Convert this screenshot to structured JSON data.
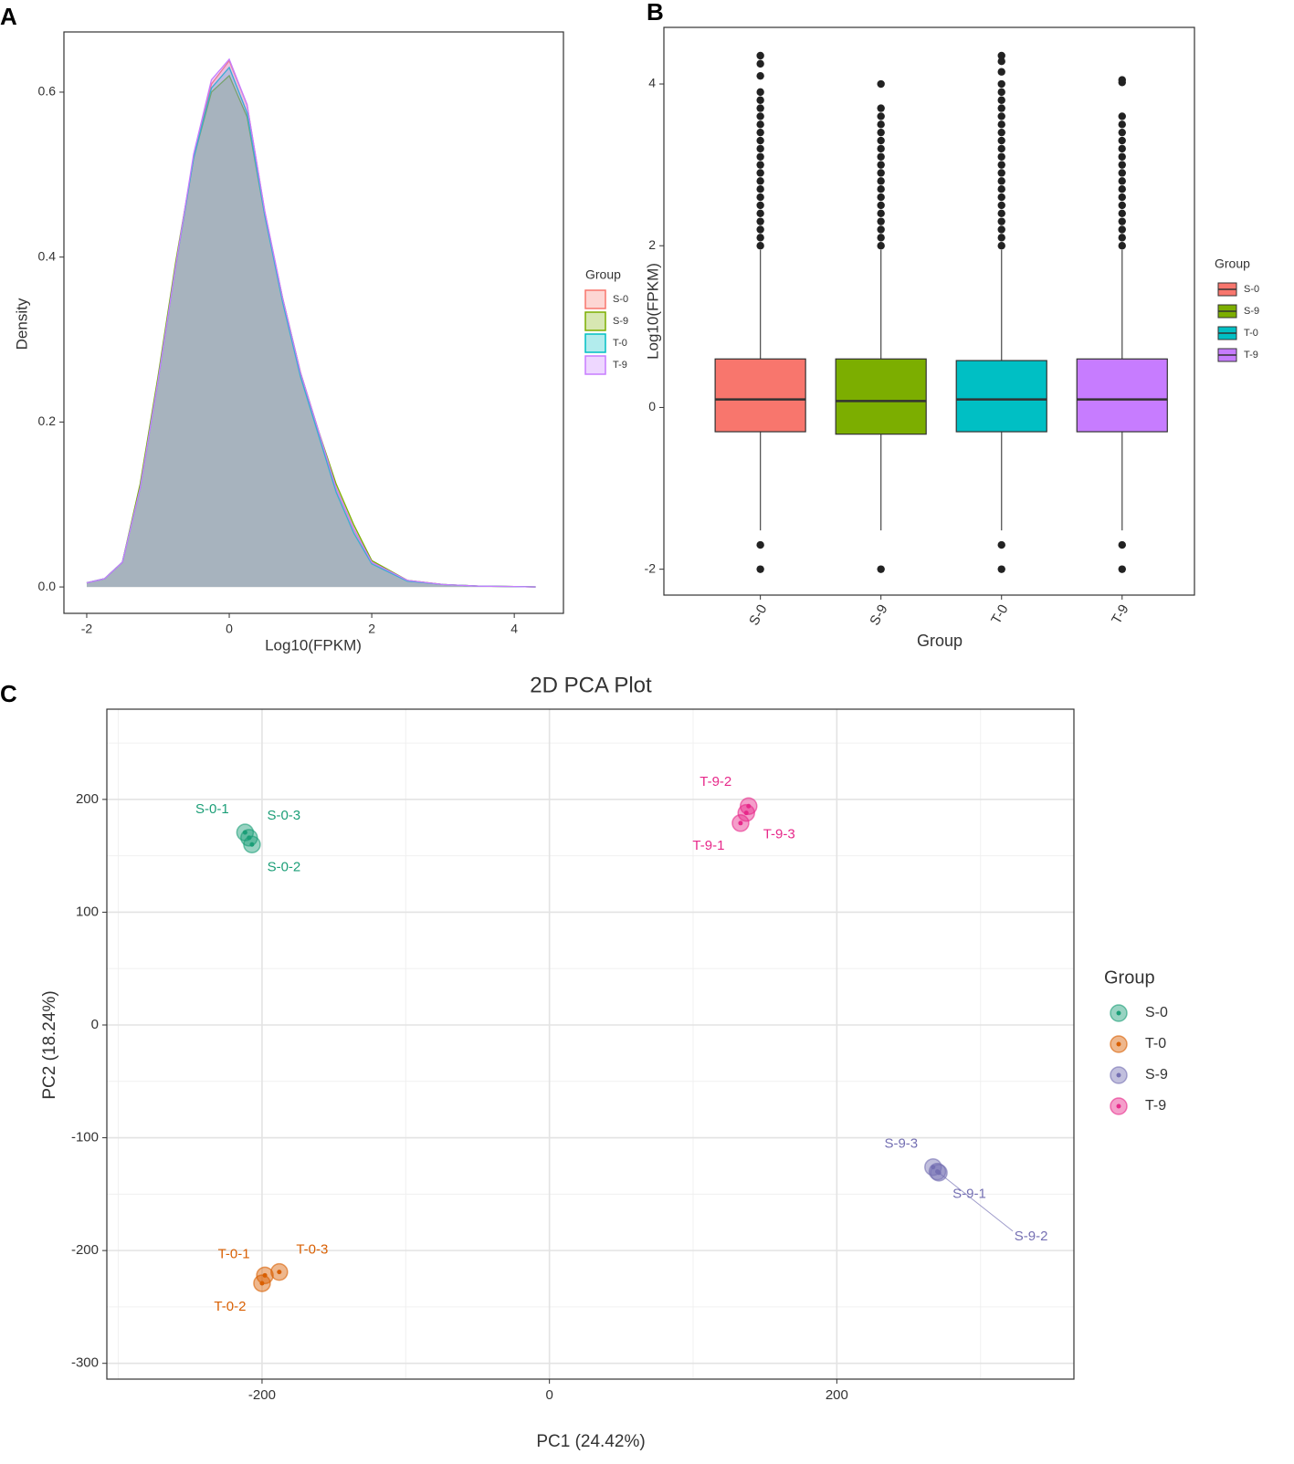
{
  "chart_data": [
    {
      "type": "density",
      "panel": "A",
      "xlabel": "Log10(FPKM)",
      "ylabel": "Density",
      "x": [
        -2,
        -1.75,
        -1.5,
        -1.25,
        -1,
        -0.75,
        -0.5,
        -0.25,
        0,
        0.25,
        0.5,
        0.75,
        1,
        1.25,
        1.5,
        1.75,
        2,
        2.5,
        3,
        3.5,
        4,
        4.3
      ],
      "series": [
        {
          "name": "S-0",
          "color": "#F8766D",
          "values": [
            0.005,
            0.01,
            0.03,
            0.12,
            0.25,
            0.39,
            0.52,
            0.61,
            0.638,
            0.585,
            0.455,
            0.35,
            0.26,
            0.19,
            0.12,
            0.07,
            0.03,
            0.008,
            0.003,
            0.001,
            0.0005,
            0
          ]
        },
        {
          "name": "S-9",
          "color": "#7CAE00",
          "values": [
            0.005,
            0.01,
            0.03,
            0.125,
            0.255,
            0.395,
            0.52,
            0.6,
            0.62,
            0.57,
            0.45,
            0.35,
            0.26,
            0.19,
            0.125,
            0.075,
            0.032,
            0.008,
            0.003,
            0.001,
            0.0005,
            0
          ]
        },
        {
          "name": "T-0",
          "color": "#00BFC4",
          "values": [
            0.005,
            0.01,
            0.03,
            0.12,
            0.25,
            0.39,
            0.52,
            0.605,
            0.63,
            0.575,
            0.45,
            0.345,
            0.255,
            0.185,
            0.115,
            0.065,
            0.028,
            0.007,
            0.003,
            0.001,
            0.0005,
            0
          ]
        },
        {
          "name": "T-9",
          "color": "#C77CFF",
          "values": [
            0.005,
            0.01,
            0.03,
            0.12,
            0.25,
            0.39,
            0.525,
            0.615,
            0.64,
            0.585,
            0.455,
            0.35,
            0.26,
            0.19,
            0.12,
            0.07,
            0.03,
            0.008,
            0.003,
            0.001,
            0.0005,
            0
          ]
        }
      ],
      "xlim": [
        -2.32,
        4.69
      ],
      "xticks": [
        -2,
        0,
        2,
        4
      ],
      "ylim": [
        -0.032,
        0.673
      ],
      "yticks": [
        {
          "value": 0,
          "label": "0.0"
        },
        {
          "value": 0.2,
          "label": "0.2"
        },
        {
          "value": 0.4,
          "label": "0.4"
        },
        {
          "value": 0.6,
          "label": "0.6"
        }
      ],
      "legend_title": "Group",
      "grid": false
    },
    {
      "type": "box",
      "panel": "B",
      "xlabel": "Group",
      "ylabel": "Log10(FPKM)",
      "categories": [
        "S-0",
        "S-9",
        "T-0",
        "T-9"
      ],
      "colors": [
        "#F8766D",
        "#7CAE00",
        "#00BFC4",
        "#C77CFF"
      ],
      "boxes": [
        {
          "whisker_low": -1.52,
          "q1": -0.3,
          "median": 0.1,
          "q3": 0.6,
          "whisker_high": 1.95,
          "outliers": [
            -2,
            -1.7,
            2.0,
            2.1,
            2.2,
            2.3,
            2.4,
            2.5,
            2.6,
            2.7,
            2.8,
            2.9,
            3.0,
            3.1,
            3.2,
            3.3,
            3.4,
            3.5,
            3.6,
            3.7,
            3.8,
            3.9,
            4.1,
            4.25,
            4.35
          ]
        },
        {
          "whisker_low": -1.52,
          "q1": -0.33,
          "median": 0.08,
          "q3": 0.6,
          "whisker_high": 1.95,
          "outliers": [
            -2,
            2.0,
            2.1,
            2.2,
            2.3,
            2.4,
            2.5,
            2.6,
            2.7,
            2.8,
            2.9,
            3.0,
            3.1,
            3.2,
            3.3,
            3.4,
            3.5,
            3.6,
            3.7,
            4.0
          ]
        },
        {
          "whisker_low": -1.52,
          "q1": -0.3,
          "median": 0.1,
          "q3": 0.58,
          "whisker_high": 1.95,
          "outliers": [
            -2,
            -1.7,
            2.0,
            2.1,
            2.2,
            2.3,
            2.4,
            2.5,
            2.6,
            2.7,
            2.8,
            2.9,
            3.0,
            3.1,
            3.2,
            3.3,
            3.4,
            3.5,
            3.6,
            3.7,
            3.8,
            3.9,
            4.0,
            4.15,
            4.28,
            4.35
          ]
        },
        {
          "whisker_low": -1.52,
          "q1": -0.3,
          "median": 0.1,
          "q3": 0.6,
          "whisker_high": 1.95,
          "outliers": [
            -2,
            -1.7,
            2.0,
            2.1,
            2.2,
            2.3,
            2.4,
            2.5,
            2.6,
            2.7,
            2.8,
            2.9,
            3.0,
            3.1,
            3.2,
            3.3,
            3.4,
            3.5,
            3.6,
            4.02,
            4.05
          ]
        }
      ],
      "ylim": [
        -2.32,
        4.7
      ],
      "yticks": [
        -2,
        0,
        2,
        4
      ],
      "legend_title": "Group",
      "grid": false
    },
    {
      "type": "scatter",
      "panel": "C",
      "title": "2D PCA Plot",
      "xlabel": "PC1 (24.42%)",
      "ylabel": "PC2 (18.24%)",
      "series": [
        {
          "name": "S-0",
          "color": "#1B9E77",
          "labels": [
            "S-0-1",
            "S-0-3",
            "S-0-2"
          ],
          "x": [
            -211.8,
            -209,
            -207
          ],
          "values": [
            170.7,
            166,
            160
          ]
        },
        {
          "name": "T-0",
          "color": "#D95F02",
          "labels": [
            "T-0-1",
            "T-0-3",
            "T-0-2"
          ],
          "x": [
            -198,
            -188,
            -200
          ],
          "values": [
            -222,
            -219,
            -229
          ]
        },
        {
          "name": "S-9",
          "color": "#7570B3",
          "labels": [
            "S-9-3",
            "S-9-1",
            "S-9-2"
          ],
          "x": [
            267,
            270,
            271
          ],
          "values": [
            -126,
            -130,
            -131
          ]
        },
        {
          "name": "T-9",
          "color": "#E7298A",
          "labels": [
            "T-9-2",
            "T-9-3",
            "T-9-1"
          ],
          "x": [
            138.6,
            137,
            133
          ],
          "values": [
            194,
            188,
            179
          ]
        }
      ],
      "xlim": [
        -308,
        365
      ],
      "xticks": [
        -200,
        0,
        200
      ],
      "minor_xticks": [
        -300,
        -100,
        100,
        300
      ],
      "ylim": [
        -314,
        280
      ],
      "yticks": [
        -300,
        -200,
        -100,
        0,
        100,
        200
      ],
      "minor_yticks": [
        -250,
        -150,
        -50,
        50,
        150,
        250
      ],
      "legend_title": "Group",
      "grid": true
    }
  ]
}
